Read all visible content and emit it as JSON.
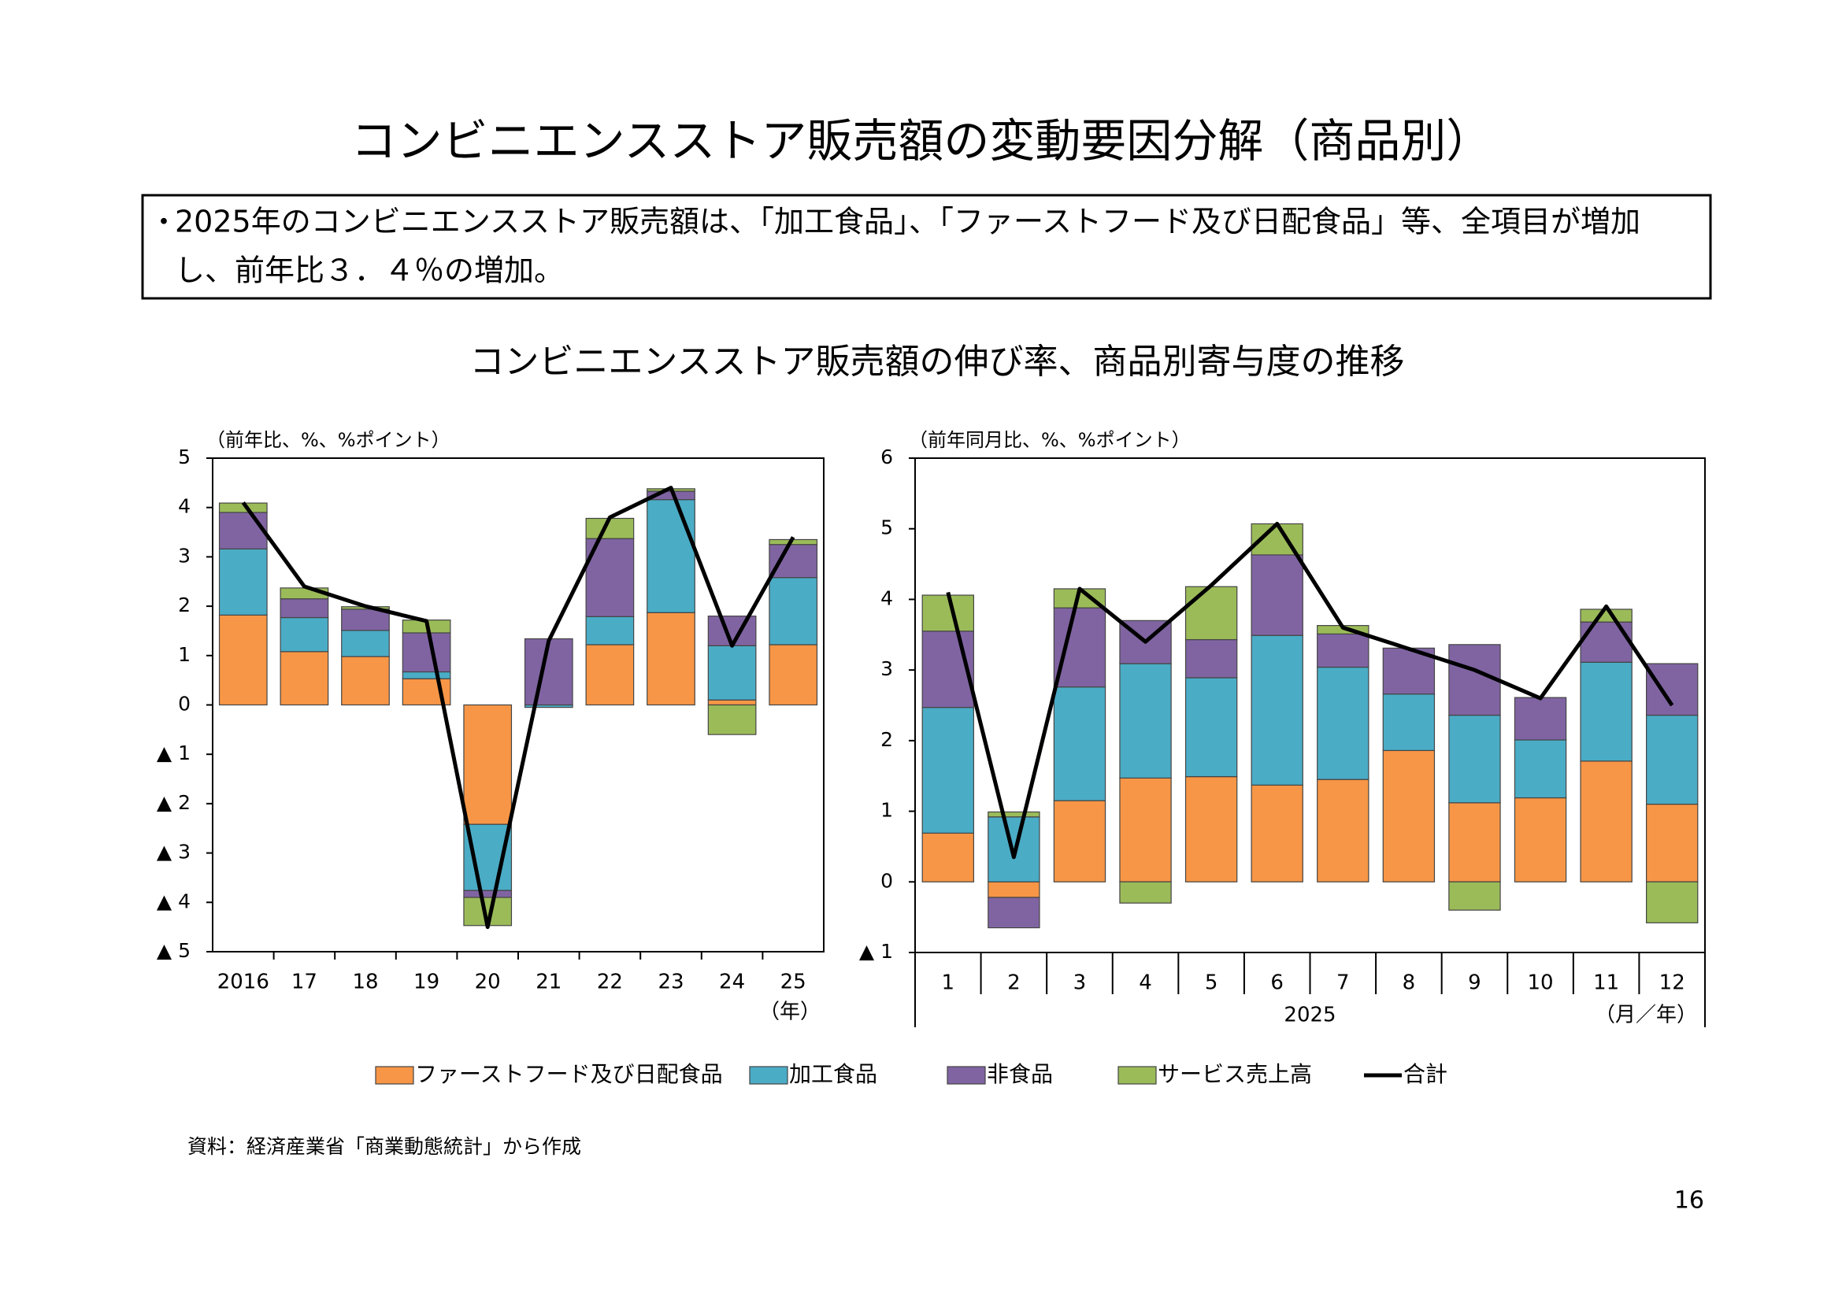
{
  "title": "コンビニエンスストア販売額の変動要因分解（商品別）",
  "bullet": {
    "marker": "・",
    "lines": [
      "2025年のコンビニエンスストア販売額は、「加工食品」、「ファーストフード及び日配食品」等、全項目が増加",
      "し、前年比３．４％の増加。"
    ]
  },
  "subtitle": "コンビニエンスストア販売額の伸び率、商品別寄与度の推移",
  "source": "資料：経済産業省「商業動態統計」から作成",
  "page_number": "16",
  "chart_data": [
    {
      "type": "bar",
      "stacked": true,
      "y_label": "（前年比、%、%ポイント）",
      "x_unit": "（年）",
      "categories": [
        "2016",
        "17",
        "18",
        "19",
        "20",
        "21",
        "22",
        "23",
        "24",
        "25"
      ],
      "ylim": [
        -5,
        5
      ],
      "yticks": [
        {
          "value": -5,
          "label": "▲ 5"
        },
        {
          "value": -4,
          "label": "▲ 4"
        },
        {
          "value": -3,
          "label": "▲ 3"
        },
        {
          "value": -2,
          "label": "▲ 2"
        },
        {
          "value": -1,
          "label": "▲ 1"
        },
        0,
        1,
        2,
        3,
        4,
        5
      ],
      "series": [
        {
          "name": "ファーストフード及び日配食品",
          "color": "#f79646",
          "values": [
            1.82,
            1.08,
            0.98,
            0.53,
            -2.42,
            0,
            1.22,
            1.87,
            0.1,
            1.22
          ]
        },
        {
          "name": "加工食品",
          "color": "#4bacc6",
          "values": [
            1.34,
            0.69,
            0.53,
            0.14,
            -1.34,
            -0.05,
            0.57,
            2.29,
            1.1,
            1.36
          ]
        },
        {
          "name": "非食品",
          "color": "#8064a2",
          "values": [
            0.74,
            0.38,
            0.43,
            0.79,
            -0.14,
            1.34,
            1.58,
            0.17,
            0.6,
            0.67
          ]
        },
        {
          "name": "サービス売上高",
          "color": "#9bbb59",
          "values": [
            0.19,
            0.22,
            0.05,
            0.26,
            -0.57,
            0,
            0.41,
            0.05,
            -0.6,
            0.1
          ]
        },
        {
          "name": "合計",
          "type": "line",
          "color": "#000000",
          "values": [
            4.1,
            2.4,
            2.0,
            1.7,
            -4.5,
            1.3,
            3.8,
            4.4,
            1.2,
            3.4
          ]
        }
      ]
    },
    {
      "type": "bar",
      "stacked": true,
      "y_label": "（前年同月比、%、%ポイント）",
      "x_group": "2025",
      "x_unit": "（月／年）",
      "categories": [
        "1",
        "2",
        "3",
        "4",
        "5",
        "6",
        "7",
        "8",
        "9",
        "10",
        "11",
        "12"
      ],
      "ylim": [
        -1,
        6
      ],
      "yticks": [
        {
          "value": -1,
          "label": "▲ 1"
        },
        0,
        1,
        2,
        3,
        4,
        5,
        6
      ],
      "series": [
        {
          "name": "ファーストフード及び日配食品",
          "color": "#f79646",
          "values": [
            0.69,
            -0.22,
            1.15,
            1.47,
            1.49,
            1.37,
            1.45,
            1.86,
            1.12,
            1.19,
            1.71,
            1.1
          ]
        },
        {
          "name": "加工食品",
          "color": "#4bacc6",
          "values": [
            1.78,
            0.92,
            1.61,
            1.62,
            1.4,
            2.12,
            1.59,
            0.8,
            1.24,
            0.82,
            1.4,
            1.26
          ]
        },
        {
          "name": "非食品",
          "color": "#8064a2",
          "values": [
            1.08,
            -0.43,
            1.12,
            0.61,
            0.54,
            1.14,
            0.47,
            0.65,
            1.0,
            0.6,
            0.57,
            0.73
          ]
        },
        {
          "name": "サービス売上高",
          "color": "#9bbb59",
          "values": [
            0.51,
            0.07,
            0.27,
            -0.3,
            0.75,
            0.44,
            0.12,
            0,
            -0.4,
            0,
            0.18,
            -0.58
          ]
        },
        {
          "name": "合計",
          "type": "line",
          "color": "#000000",
          "values": [
            4.1,
            0.35,
            4.15,
            3.4,
            4.2,
            5.07,
            3.6,
            3.3,
            3.0,
            2.6,
            3.9,
            2.5
          ]
        }
      ]
    }
  ]
}
